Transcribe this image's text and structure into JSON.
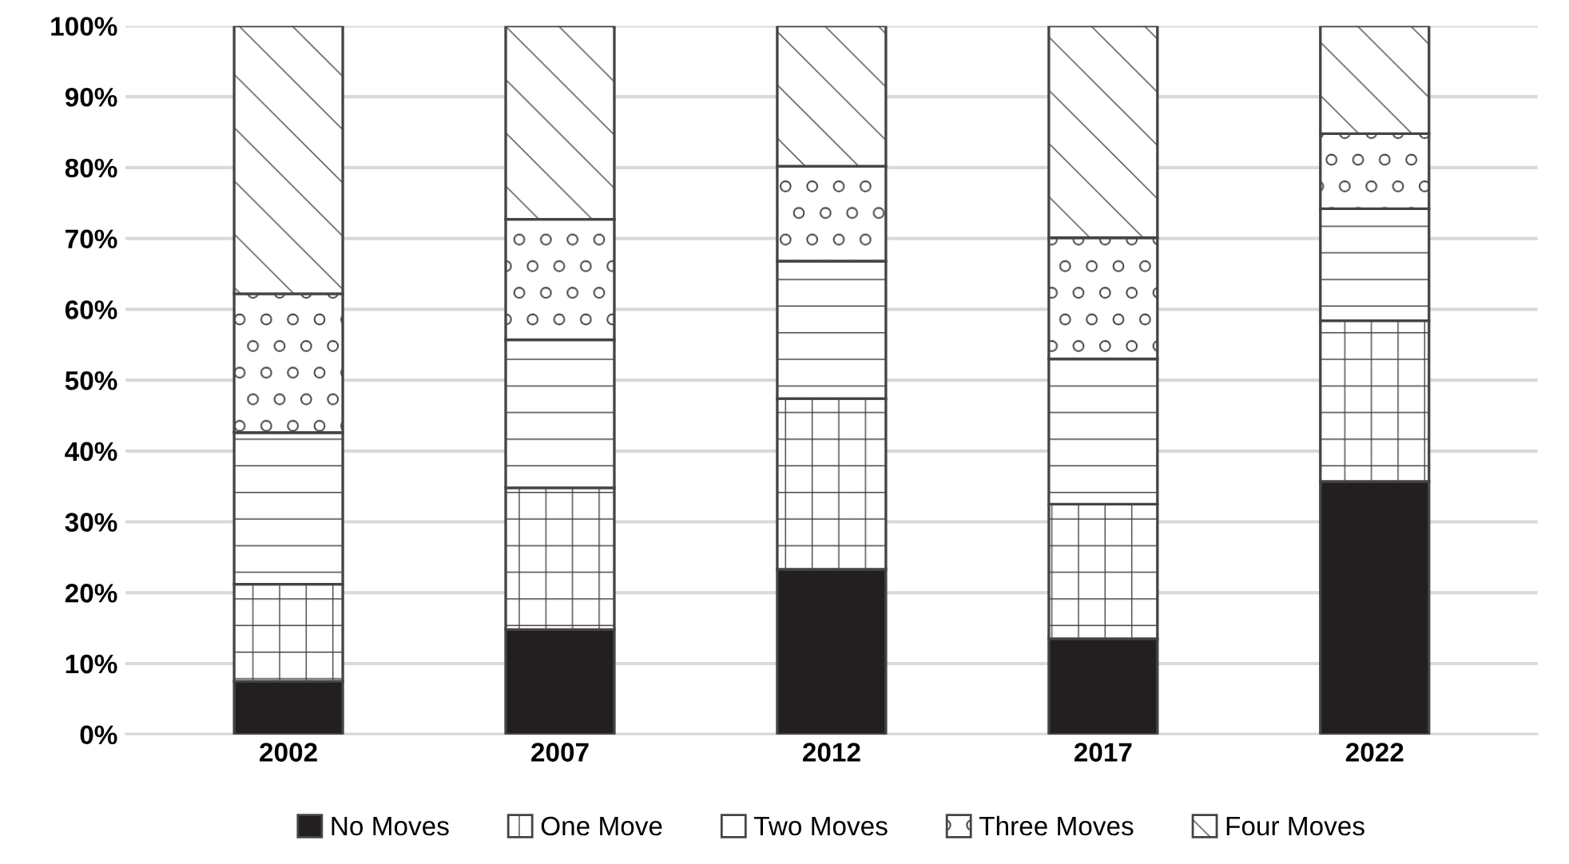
{
  "chart_data": {
    "type": "bar",
    "stacked": true,
    "categories": [
      "2002",
      "2007",
      "2012",
      "2017",
      "2022"
    ],
    "series": [
      {
        "name": "No Moves",
        "color": "#231f20",
        "values": [
          7.5,
          14.8,
          23.3,
          13.5,
          35.7
        ]
      },
      {
        "name": "One Move",
        "color": "#ffffff",
        "values": [
          13.7,
          20,
          24.1,
          19,
          22.7
        ]
      },
      {
        "name": "Two Moves",
        "color": "#ffffff",
        "values": [
          21.4,
          20.9,
          19.4,
          20.5,
          15.8
        ]
      },
      {
        "name": "Three Moves",
        "color": "#ffffff",
        "values": [
          19.6,
          17,
          13.4,
          17.1,
          10.6
        ]
      },
      {
        "name": "Four Moves",
        "color": "#ffffff",
        "values": [
          37.8,
          27.3,
          19.8,
          29.9,
          15.2
        ]
      }
    ],
    "ylim": [
      0,
      100
    ],
    "yticks": [
      {
        "value": 0,
        "label": "0%"
      },
      {
        "value": 10,
        "label": "10%"
      },
      {
        "value": 20,
        "label": "20%"
      },
      {
        "value": 30,
        "label": "30%"
      },
      {
        "value": 40,
        "label": "40%"
      },
      {
        "value": 50,
        "label": "50%"
      },
      {
        "value": 60,
        "label": "60%"
      },
      {
        "value": 70,
        "label": "70%"
      },
      {
        "value": 80,
        "label": "80%"
      },
      {
        "value": 90,
        "label": "90%"
      },
      {
        "value": 100,
        "label": "100%"
      }
    ],
    "grid": "y",
    "legend": "bottom"
  }
}
